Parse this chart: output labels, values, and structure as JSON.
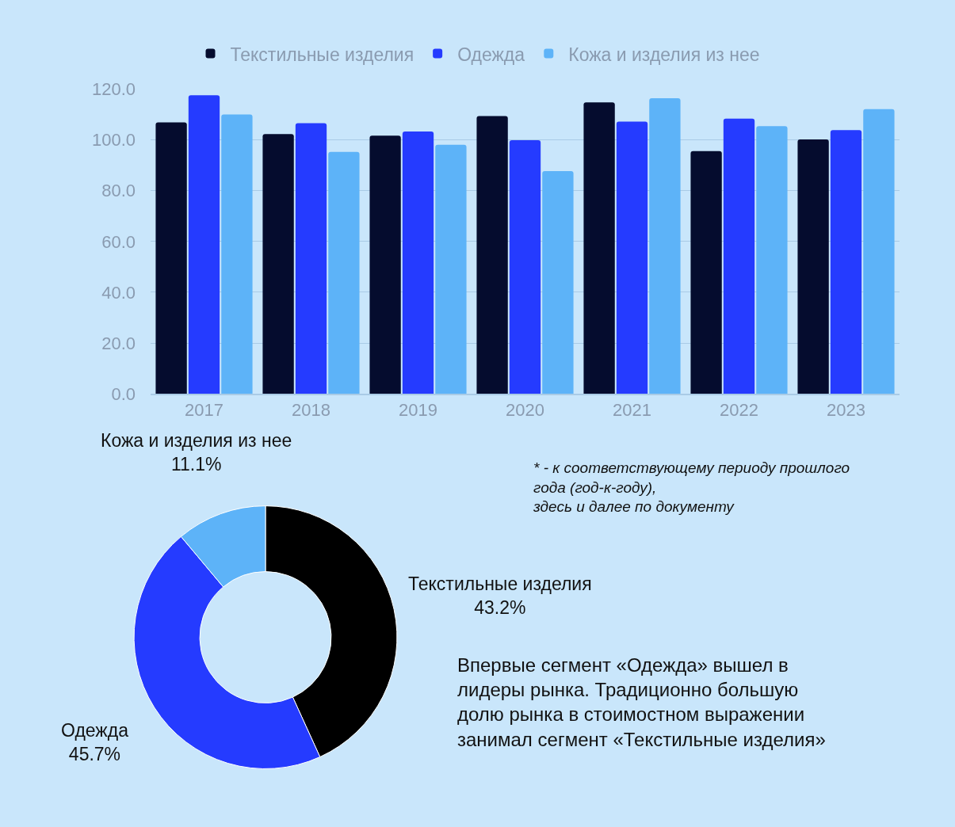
{
  "chart_data": [
    {
      "type": "bar",
      "categories": [
        "2017",
        "2018",
        "2019",
        "2020",
        "2021",
        "2022",
        "2023"
      ],
      "series": [
        {
          "name": "Текстильные изделия",
          "color": "#050c2e",
          "values": [
            106.9,
            102.3,
            101.7,
            109.4,
            114.8,
            95.6,
            100.2
          ]
        },
        {
          "name": "Одежда",
          "color": "#253bff",
          "values": [
            117.6,
            106.6,
            103.3,
            99.9,
            107.2,
            108.4,
            103.9
          ]
        },
        {
          "name": "Кожа и изделия из нее",
          "color": "#5db3f8",
          "values": [
            110.0,
            95.3,
            98.1,
            87.7,
            116.4,
            105.4,
            112.1
          ]
        }
      ],
      "ylim": [
        0,
        120
      ],
      "yticks": [
        {
          "value": 0,
          "label": "0.0"
        },
        {
          "value": 20,
          "label": "20.0"
        },
        {
          "value": 40,
          "label": "40.0"
        },
        {
          "value": 60,
          "label": "60.0"
        },
        {
          "value": 80,
          "label": "80.0"
        },
        {
          "value": 100,
          "label": "100.0"
        },
        {
          "value": 120,
          "label": "120.0"
        }
      ],
      "grid": "y",
      "legend": "top"
    },
    {
      "type": "donut",
      "categories": [
        "Текстильные изделия",
        "Одежда",
        "Кожа и изделия из нее"
      ],
      "values": [
        43.2,
        45.7,
        11.1
      ],
      "value_labels": [
        "43.2%",
        "45.7%",
        "11.1%"
      ],
      "colors": [
        "#000000",
        "#253bff",
        "#5db3f8"
      ],
      "annotations": [
        "* - к соответствующему периоду прошлого\nгода (год-к-году),\nздесь и далее по документу",
        "Впервые сегмент «Одежда» вышел в\nлидеры рынка. Традиционно большую\nдолю рынка в стоимостном выражении\nзанимал сегмент «Текстильные изделия»"
      ]
    }
  ]
}
